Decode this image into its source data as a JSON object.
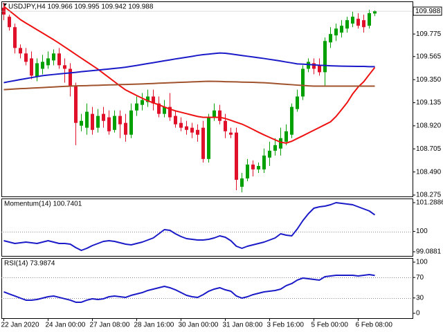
{
  "chart_data": [
    {
      "type": "candlestick",
      "title": "USDJPY,H4  109.966 109.995 109.942 109.988",
      "categories": [
        "22 Jan 2020",
        null,
        null,
        null,
        null,
        null,
        null,
        null,
        "24 Jan 00:00",
        null,
        null,
        null,
        null,
        null,
        null,
        null,
        "27 Jan 08:00",
        null,
        null,
        null,
        null,
        null,
        null,
        null,
        "28 Jan 16:00",
        null,
        null,
        null,
        null,
        null,
        null,
        null,
        "30 Jan 00:00",
        null,
        null,
        null,
        null,
        null,
        null,
        null,
        "31 Jan 08:00",
        null,
        null,
        null,
        null,
        null,
        null,
        null,
        "3 Feb 16:00",
        null,
        null,
        null,
        null,
        null,
        null,
        null,
        "5 Feb 00:00",
        null,
        null,
        null,
        null,
        null,
        null,
        null,
        "6 Feb 08:00",
        null,
        null,
        null
      ],
      "open": [
        110.02,
        109.936,
        109.839,
        109.645,
        109.594,
        109.548,
        109.374,
        109.451,
        109.484,
        109.529,
        109.594,
        109.484,
        109.451,
        109.29,
        108.921,
        108.902,
        109.031,
        108.902,
        109.031,
        108.999,
        108.882,
        109.012,
        108.947,
        108.837,
        109.063,
        109.115,
        109.141,
        109.193,
        109.128,
        109.031,
        109.096,
        109.012,
        108.947,
        108.915,
        108.902,
        108.882,
        108.902,
        108.611,
        108.999,
        109.063,
        108.966,
        108.857,
        108.857,
        108.352,
        108.43,
        108.559,
        108.514,
        108.514,
        108.624,
        108.688,
        108.708,
        108.772,
        108.837,
        109.076,
        109.193,
        109.451,
        109.503,
        109.484,
        109.419,
        109.697,
        109.762,
        109.788,
        109.826,
        109.872,
        109.917,
        109.904,
        109.852,
        109.966
      ],
      "high": [
        110.066,
        109.956,
        109.872,
        109.678,
        109.645,
        109.613,
        109.548,
        109.581,
        109.613,
        109.632,
        109.645,
        109.548,
        109.503,
        109.322,
        109.031,
        109.128,
        109.096,
        109.076,
        109.096,
        109.063,
        109.063,
        109.063,
        109.031,
        109.128,
        109.193,
        109.225,
        109.257,
        109.257,
        109.193,
        109.16,
        109.225,
        109.063,
        108.999,
        108.966,
        108.947,
        108.934,
        108.966,
        109.031,
        109.128,
        109.115,
        109.031,
        108.902,
        108.902,
        108.481,
        108.611,
        108.598,
        108.578,
        108.708,
        108.772,
        108.805,
        108.902,
        108.934,
        109.128,
        109.257,
        109.484,
        109.548,
        109.548,
        109.548,
        109.742,
        109.839,
        109.872,
        109.904,
        109.936,
        109.982,
        109.969,
        109.956,
        110.001,
        109.995
      ],
      "low": [
        109.904,
        109.807,
        109.594,
        109.548,
        109.484,
        109.354,
        109.335,
        109.4,
        109.451,
        109.484,
        109.451,
        109.322,
        109.193,
        108.74,
        108.869,
        108.837,
        108.837,
        108.857,
        108.902,
        108.837,
        108.857,
        108.805,
        108.772,
        108.805,
        109.012,
        109.063,
        109.096,
        109.063,
        108.999,
        108.999,
        108.966,
        108.902,
        108.869,
        108.837,
        108.805,
        108.772,
        108.578,
        108.578,
        108.966,
        108.934,
        108.805,
        108.805,
        108.32,
        108.3,
        108.404,
        108.449,
        108.481,
        108.481,
        108.546,
        108.643,
        108.643,
        108.74,
        108.805,
        109.051,
        109.16,
        109.419,
        109.4,
        109.387,
        109.29,
        109.645,
        109.71,
        109.742,
        109.788,
        109.839,
        109.826,
        109.788,
        109.826,
        109.942
      ],
      "close": [
        109.956,
        109.839,
        109.645,
        109.594,
        109.516,
        109.387,
        109.503,
        109.516,
        109.548,
        109.594,
        109.484,
        109.451,
        109.29,
        108.947,
        108.966,
        109.051,
        108.882,
        109.012,
        108.966,
        108.869,
        109.012,
        108.934,
        108.837,
        109.063,
        109.128,
        109.16,
        109.193,
        109.128,
        109.031,
        109.096,
        108.999,
        108.934,
        108.902,
        108.882,
        108.857,
        108.837,
        108.611,
        108.999,
        109.063,
        108.966,
        108.869,
        108.837,
        108.417,
        108.43,
        108.559,
        108.514,
        108.546,
        108.643,
        108.688,
        108.74,
        108.805,
        108.869,
        109.096,
        109.193,
        109.451,
        109.516,
        109.451,
        109.419,
        109.71,
        109.775,
        109.826,
        109.852,
        109.904,
        109.936,
        109.852,
        109.839,
        109.969,
        109.988
      ],
      "up_color": "#00a000",
      "down_color": "#e0102a",
      "series": [
        {
          "color": "#ee1111",
          "values": [
            110.033,
            109.992,
            109.951,
            109.909,
            109.877,
            109.846,
            109.815,
            109.784,
            109.753,
            109.722,
            109.689,
            109.654,
            109.62,
            109.585,
            109.55,
            109.516,
            109.482,
            109.447,
            109.408,
            109.369,
            109.33,
            109.291,
            109.254,
            109.228,
            109.202,
            109.177,
            109.153,
            109.134,
            109.115,
            109.095,
            109.076,
            109.059,
            109.046,
            109.033,
            109.02,
            109.007,
            108.999,
            108.999,
            108.999,
            108.999,
            108.988,
            108.971,
            108.953,
            108.936,
            108.912,
            108.886,
            108.86,
            108.835,
            108.812,
            108.789,
            108.767,
            108.759,
            108.776,
            108.802,
            108.827,
            108.853,
            108.879,
            108.905,
            108.931,
            108.957,
            109.007,
            109.071,
            109.136,
            109.217,
            109.282,
            109.331,
            109.398,
            109.464
          ]
        },
        {
          "color": "#1a1ac8",
          "values": [
            109.322,
            109.332,
            109.341,
            109.351,
            109.36,
            109.369,
            109.378,
            109.387,
            109.393,
            109.398,
            109.403,
            109.408,
            109.413,
            109.418,
            109.424,
            109.429,
            109.434,
            109.439,
            109.444,
            109.449,
            109.455,
            109.46,
            109.466,
            109.474,
            109.482,
            109.491,
            109.5,
            109.508,
            109.517,
            109.526,
            109.534,
            109.543,
            109.551,
            109.559,
            109.567,
            109.576,
            109.583,
            109.588,
            109.593,
            109.598,
            109.596,
            109.589,
            109.582,
            109.575,
            109.568,
            109.561,
            109.554,
            109.547,
            109.539,
            109.531,
            109.523,
            109.514,
            109.506,
            109.497,
            109.494,
            109.491,
            109.488,
            109.484,
            109.482,
            109.479,
            109.477,
            109.476,
            109.475,
            109.474,
            109.473,
            109.473,
            109.471,
            109.471
          ]
        },
        {
          "color": "#a0522d",
          "values": [
            109.257,
            109.26,
            109.263,
            109.266,
            109.268,
            109.271,
            109.274,
            109.276,
            109.279,
            109.282,
            109.285,
            109.287,
            109.29,
            109.292,
            109.293,
            109.294,
            109.296,
            109.297,
            109.299,
            109.301,
            109.302,
            109.304,
            109.305,
            109.307,
            109.308,
            109.31,
            109.312,
            109.314,
            109.317,
            109.319,
            109.321,
            109.323,
            109.325,
            109.327,
            109.329,
            109.331,
            109.333,
            109.335,
            109.334,
            109.333,
            109.331,
            109.33,
            109.329,
            109.327,
            109.326,
            109.325,
            109.323,
            109.321,
            109.318,
            109.314,
            109.31,
            109.307,
            109.303,
            109.299,
            109.296,
            109.292,
            109.29,
            109.29,
            109.29,
            109.29,
            109.29,
            109.29,
            109.29,
            109.29,
            109.29,
            109.29,
            109.29,
            109.29
          ]
        }
      ],
      "ylim": [
        108.262,
        110.079
      ],
      "yticks": [
        109.775,
        109.565,
        {
          "value": 109.35,
          "label": "109.350"
        },
        109.135,
        {
          "value": 108.92,
          "label": "108.920"
        },
        108.705,
        {
          "value": 108.49,
          "label": "108.490"
        },
        108.275
      ]
    },
    {
      "type": "line",
      "title": "Momentum(14) 100.7401",
      "color": "#1a1ac8",
      "values": [
        99.584,
        99.522,
        99.46,
        99.491,
        99.522,
        99.491,
        99.46,
        99.522,
        99.584,
        99.522,
        99.46,
        99.46,
        99.429,
        99.274,
        99.15,
        99.243,
        99.367,
        99.46,
        99.553,
        99.584,
        99.553,
        99.491,
        99.429,
        99.398,
        99.46,
        99.522,
        99.615,
        99.708,
        99.894,
        100.08,
        100.049,
        99.894,
        99.77,
        99.677,
        99.646,
        99.615,
        99.615,
        99.646,
        99.708,
        99.801,
        99.739,
        99.584,
        99.336,
        99.243,
        99.336,
        99.398,
        99.46,
        99.522,
        99.615,
        99.708,
        99.894,
        99.832,
        99.801,
        100.111,
        100.483,
        100.793,
        101.041,
        101.103,
        101.134,
        101.196,
        101.289,
        101.258,
        101.227,
        101.196,
        101.103,
        101.01,
        100.917,
        100.7401
      ],
      "ylim": [
        98.902,
        101.475
      ],
      "yticks": [
        101.2886,
        100,
        99.0881
      ],
      "levels": [
        100
      ]
    },
    {
      "type": "line",
      "title": "RSI(14) 73.9874",
      "color": "#1a1ac8",
      "values": [
        41.9,
        37.8,
        33.8,
        29.7,
        25.7,
        25.7,
        27.0,
        29.7,
        32.4,
        33.8,
        31.1,
        28.4,
        25.7,
        21.6,
        21.6,
        25.7,
        28.4,
        27.0,
        28.4,
        32.4,
        33.8,
        32.4,
        31.1,
        35.1,
        37.8,
        40.5,
        44.6,
        47.3,
        50.0,
        52.7,
        50.0,
        45.9,
        40.5,
        35.1,
        32.4,
        31.1,
        36.5,
        43.2,
        47.3,
        50.0,
        45.9,
        43.2,
        33.8,
        29.7,
        32.4,
        36.5,
        39.2,
        41.9,
        43.2,
        44.6,
        47.3,
        54.1,
        58.1,
        64.9,
        68.9,
        67.6,
        66.2,
        64.9,
        71.6,
        73.0,
        74.3,
        74.3,
        74.3,
        74.3,
        73.0,
        74.3,
        75.7,
        73.9874
      ],
      "ylim": [
        -9.5,
        108.1
      ],
      "yticks": [
        100,
        70,
        30,
        0
      ],
      "levels": [
        70,
        30
      ]
    }
  ]
}
